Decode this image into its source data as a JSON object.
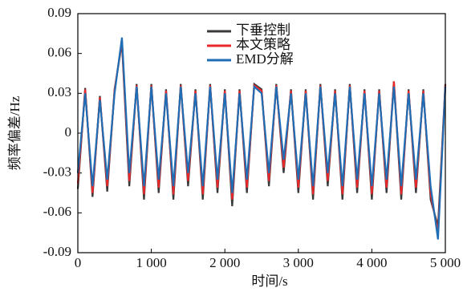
{
  "chart_data": {
    "type": "line",
    "x_label": "时间/s",
    "y_label": "频率偏差/Hz",
    "x": [
      0,
      100,
      200,
      300,
      400,
      500,
      600,
      700,
      800,
      900,
      1000,
      1100,
      1200,
      1300,
      1400,
      1500,
      1600,
      1700,
      1800,
      1900,
      2000,
      2100,
      2200,
      2300,
      2400,
      2500,
      2600,
      2700,
      2800,
      2900,
      3000,
      3100,
      3200,
      3300,
      3400,
      3500,
      3600,
      3700,
      3800,
      3900,
      4000,
      4100,
      4200,
      4300,
      4400,
      4500,
      4600,
      4700,
      4800,
      4900,
      5000
    ],
    "series": [
      {
        "name": "下垂控制",
        "color": "#3a3a3a",
        "values": [
          -0.042,
          0.034,
          -0.048,
          0.028,
          -0.044,
          0.033,
          0.068,
          -0.04,
          0.037,
          -0.05,
          0.037,
          -0.045,
          0.033,
          -0.05,
          0.037,
          -0.04,
          0.033,
          -0.05,
          0.037,
          -0.045,
          0.033,
          -0.055,
          0.033,
          -0.045,
          0.037,
          0.033,
          -0.04,
          0.037,
          -0.03,
          0.033,
          -0.045,
          0.033,
          -0.05,
          0.037,
          -0.04,
          0.033,
          -0.05,
          0.037,
          -0.045,
          0.033,
          -0.05,
          0.033,
          -0.045,
          0.039,
          -0.05,
          0.033,
          -0.045,
          0.033,
          -0.05,
          -0.07,
          0.037
        ]
      },
      {
        "name": "本文策略",
        "color": "#e8282b",
        "values": [
          -0.038,
          0.033,
          -0.045,
          0.027,
          -0.04,
          0.032,
          0.07,
          -0.036,
          0.036,
          -0.046,
          0.036,
          -0.041,
          0.032,
          -0.046,
          0.036,
          -0.036,
          0.032,
          -0.046,
          0.036,
          -0.041,
          0.032,
          -0.05,
          0.032,
          -0.041,
          0.036,
          0.032,
          -0.036,
          0.036,
          -0.026,
          0.032,
          -0.041,
          0.032,
          -0.046,
          0.036,
          -0.036,
          0.032,
          -0.046,
          0.036,
          -0.041,
          0.032,
          -0.046,
          0.032,
          -0.041,
          0.039,
          -0.046,
          0.032,
          -0.041,
          0.032,
          -0.046,
          -0.075,
          0.036
        ]
      },
      {
        "name": "EMD分解",
        "color": "#1f6eb5",
        "values": [
          -0.03,
          0.03,
          -0.04,
          0.025,
          -0.035,
          0.03,
          0.072,
          -0.03,
          0.035,
          -0.04,
          0.035,
          -0.035,
          0.03,
          -0.04,
          0.035,
          -0.03,
          0.03,
          -0.04,
          0.035,
          -0.035,
          0.03,
          -0.045,
          0.03,
          -0.035,
          0.035,
          0.03,
          -0.03,
          0.035,
          -0.02,
          0.03,
          -0.035,
          0.03,
          -0.04,
          0.035,
          -0.03,
          0.03,
          -0.04,
          0.035,
          -0.035,
          0.03,
          -0.04,
          0.03,
          -0.035,
          0.035,
          -0.04,
          0.03,
          -0.035,
          0.03,
          -0.04,
          -0.08,
          0.035
        ]
      }
    ],
    "xlim": [
      0,
      5000
    ],
    "xticks": [
      0,
      {
        "value": 1000,
        "label": "1 000"
      },
      {
        "value": 2000,
        "label": "2 000"
      },
      {
        "value": 3000,
        "label": "3 000"
      },
      {
        "value": 4000,
        "label": "4 000"
      },
      {
        "value": 5000,
        "label": "5 000"
      }
    ],
    "ylim": [
      -0.09,
      0.09
    ],
    "yticks": [
      -0.09,
      -0.06,
      -0.03,
      0,
      0.03,
      0.06,
      0.09
    ],
    "legend": "upper-center"
  }
}
